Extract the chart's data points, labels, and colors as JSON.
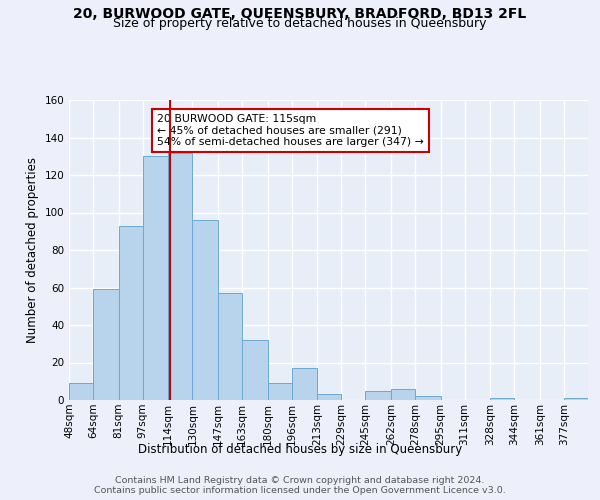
{
  "title": "20, BURWOOD GATE, QUEENSBURY, BRADFORD, BD13 2FL",
  "subtitle": "Size of property relative to detached houses in Queensbury",
  "xlabel": "Distribution of detached houses by size in Queensbury",
  "ylabel": "Number of detached properties",
  "footer_lines": [
    "Contains HM Land Registry data © Crown copyright and database right 2024.",
    "Contains public sector information licensed under the Open Government Licence v3.0."
  ],
  "bin_labels": [
    "48sqm",
    "64sqm",
    "81sqm",
    "97sqm",
    "114sqm",
    "130sqm",
    "147sqm",
    "163sqm",
    "180sqm",
    "196sqm",
    "213sqm",
    "229sqm",
    "245sqm",
    "262sqm",
    "278sqm",
    "295sqm",
    "311sqm",
    "328sqm",
    "344sqm",
    "361sqm",
    "377sqm"
  ],
  "bin_edges": [
    48,
    64,
    81,
    97,
    114,
    130,
    147,
    163,
    180,
    196,
    213,
    229,
    245,
    262,
    278,
    295,
    311,
    328,
    344,
    361,
    377
  ],
  "bar_heights": [
    9,
    59,
    93,
    130,
    132,
    96,
    57,
    32,
    9,
    17,
    3,
    0,
    5,
    6,
    2,
    0,
    0,
    1,
    0,
    0,
    1
  ],
  "bar_color": "#b8d4ed",
  "bar_edgecolor": "#6aaad4",
  "vline_x": 115,
  "vline_color": "#cc0000",
  "annotation_text_line1": "20 BURWOOD GATE: 115sqm",
  "annotation_text_line2": "← 45% of detached houses are smaller (291)",
  "annotation_text_line3": "54% of semi-detached houses are larger (347) →",
  "annotation_box_color": "#ffffff",
  "annotation_box_edgecolor": "#cc0000",
  "ylim": [
    0,
    160
  ],
  "background_color": "#edf0fa",
  "plot_background": "#e8eef8",
  "grid_color": "#ffffff",
  "title_fontsize": 10,
  "subtitle_fontsize": 9,
  "axis_label_fontsize": 8.5,
  "tick_fontsize": 7.5,
  "annotation_fontsize": 7.8,
  "footer_fontsize": 6.8
}
